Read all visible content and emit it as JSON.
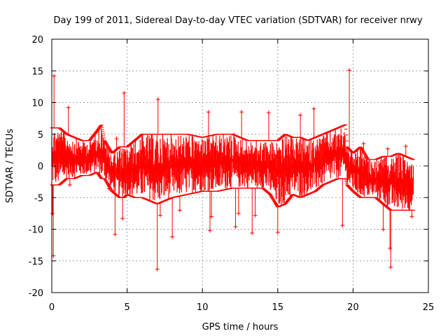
{
  "chart_data": {
    "type": "scatter",
    "title": "Day 199 of 2011, Sidereal Day-to-day VTEC variation (SDTVAR) for receiver nrwy",
    "xlabel": "GPS time / hours",
    "ylabel": "SDTVAR / TECUs",
    "xlim": [
      0,
      25
    ],
    "ylim": [
      -20,
      20
    ],
    "grid": true,
    "marker": "+",
    "series_color": "#ff0000",
    "x_ticks": [
      0,
      5,
      10,
      15,
      20,
      25
    ],
    "y_ticks": [
      -20,
      -15,
      -10,
      -5,
      0,
      5,
      10,
      15,
      20
    ],
    "x_tick_labels": [
      "0",
      "5",
      "10",
      "15",
      "20",
      "25"
    ],
    "y_tick_labels": [
      "-20",
      "-15",
      "-10",
      "-5",
      "0",
      "5",
      "10",
      "15",
      "20"
    ],
    "envelope": {
      "hours": [
        0.0,
        0.1,
        0.5,
        1.0,
        1.5,
        2.0,
        2.5,
        3.0,
        3.3,
        3.5,
        4.0,
        4.5,
        4.8,
        5.0,
        5.5,
        6.0,
        6.5,
        7.0,
        7.5,
        8.0,
        9.0,
        10.0,
        11.0,
        12.0,
        13.0,
        14.0,
        14.5,
        15.0,
        15.5,
        16.0,
        16.5,
        17.0,
        17.5,
        18.0,
        18.5,
        19.0,
        19.5,
        19.6,
        20.0,
        20.5,
        21.0,
        21.5,
        22.0,
        22.5,
        23.0,
        23.5,
        24.0
      ],
      "upper": [
        6,
        6,
        6,
        5,
        4.5,
        4,
        4,
        5.5,
        6.5,
        4,
        2,
        3,
        3,
        3,
        4,
        5,
        5,
        5,
        5,
        5,
        5,
        4.5,
        5,
        5,
        4,
        4,
        4,
        4,
        5,
        4.5,
        4.5,
        4,
        4.5,
        5,
        5.5,
        6,
        6.5,
        3,
        2,
        3,
        1,
        1,
        1.5,
        1.5,
        2,
        1.5,
        1
      ],
      "lower": [
        -3,
        -3,
        -3,
        -2,
        -2,
        -1.5,
        -1.5,
        -1,
        -2,
        -2,
        -4,
        -5,
        -5,
        -4.5,
        -5,
        -5,
        -5.5,
        -6,
        -5.5,
        -5,
        -4.5,
        -4,
        -4,
        -3.5,
        -3.5,
        -3.5,
        -4.5,
        -6.5,
        -6,
        -4.5,
        -5,
        -4.5,
        -4,
        -3,
        -2.5,
        -2,
        -2,
        -3,
        -4,
        -5,
        -5,
        -5,
        -6,
        -7,
        -7,
        -7,
        -7
      ]
    },
    "spikes": [
      {
        "x": 0.15,
        "y": 14.2
      },
      {
        "x": 0.1,
        "y": -14.2
      },
      {
        "x": 0.05,
        "y": -7.5
      },
      {
        "x": 1.1,
        "y": 9.2
      },
      {
        "x": 1.2,
        "y": -3.0
      },
      {
        "x": 4.8,
        "y": 11.5
      },
      {
        "x": 4.7,
        "y": -8.3
      },
      {
        "x": 4.3,
        "y": 4.3
      },
      {
        "x": 4.2,
        "y": -10.8
      },
      {
        "x": 3.8,
        "y": -3.6
      },
      {
        "x": 7.05,
        "y": 10.5
      },
      {
        "x": 7.0,
        "y": -16.3
      },
      {
        "x": 7.2,
        "y": -7.8
      },
      {
        "x": 8.0,
        "y": -11.2
      },
      {
        "x": 8.5,
        "y": -7.0
      },
      {
        "x": 10.4,
        "y": 8.5
      },
      {
        "x": 10.5,
        "y": -10.2
      },
      {
        "x": 10.6,
        "y": -8.0
      },
      {
        "x": 12.1,
        "y": 4.9
      },
      {
        "x": 12.2,
        "y": -9.6
      },
      {
        "x": 12.4,
        "y": -7.5
      },
      {
        "x": 12.6,
        "y": 8.5
      },
      {
        "x": 13.3,
        "y": -10.6
      },
      {
        "x": 13.5,
        "y": -7.8
      },
      {
        "x": 14.4,
        "y": 8.4
      },
      {
        "x": 15.0,
        "y": -10.5
      },
      {
        "x": 16.5,
        "y": 8.0
      },
      {
        "x": 17.4,
        "y": 9.0
      },
      {
        "x": 19.3,
        "y": -9.4
      },
      {
        "x": 19.75,
        "y": 15.1
      },
      {
        "x": 20.7,
        "y": 3.5
      },
      {
        "x": 22.3,
        "y": 2.7
      },
      {
        "x": 22.5,
        "y": -16.0
      },
      {
        "x": 22.45,
        "y": -13.0
      },
      {
        "x": 23.5,
        "y": 3.1
      },
      {
        "x": 22.0,
        "y": -10.0
      },
      {
        "x": 23.9,
        "y": -8.0
      }
    ]
  }
}
